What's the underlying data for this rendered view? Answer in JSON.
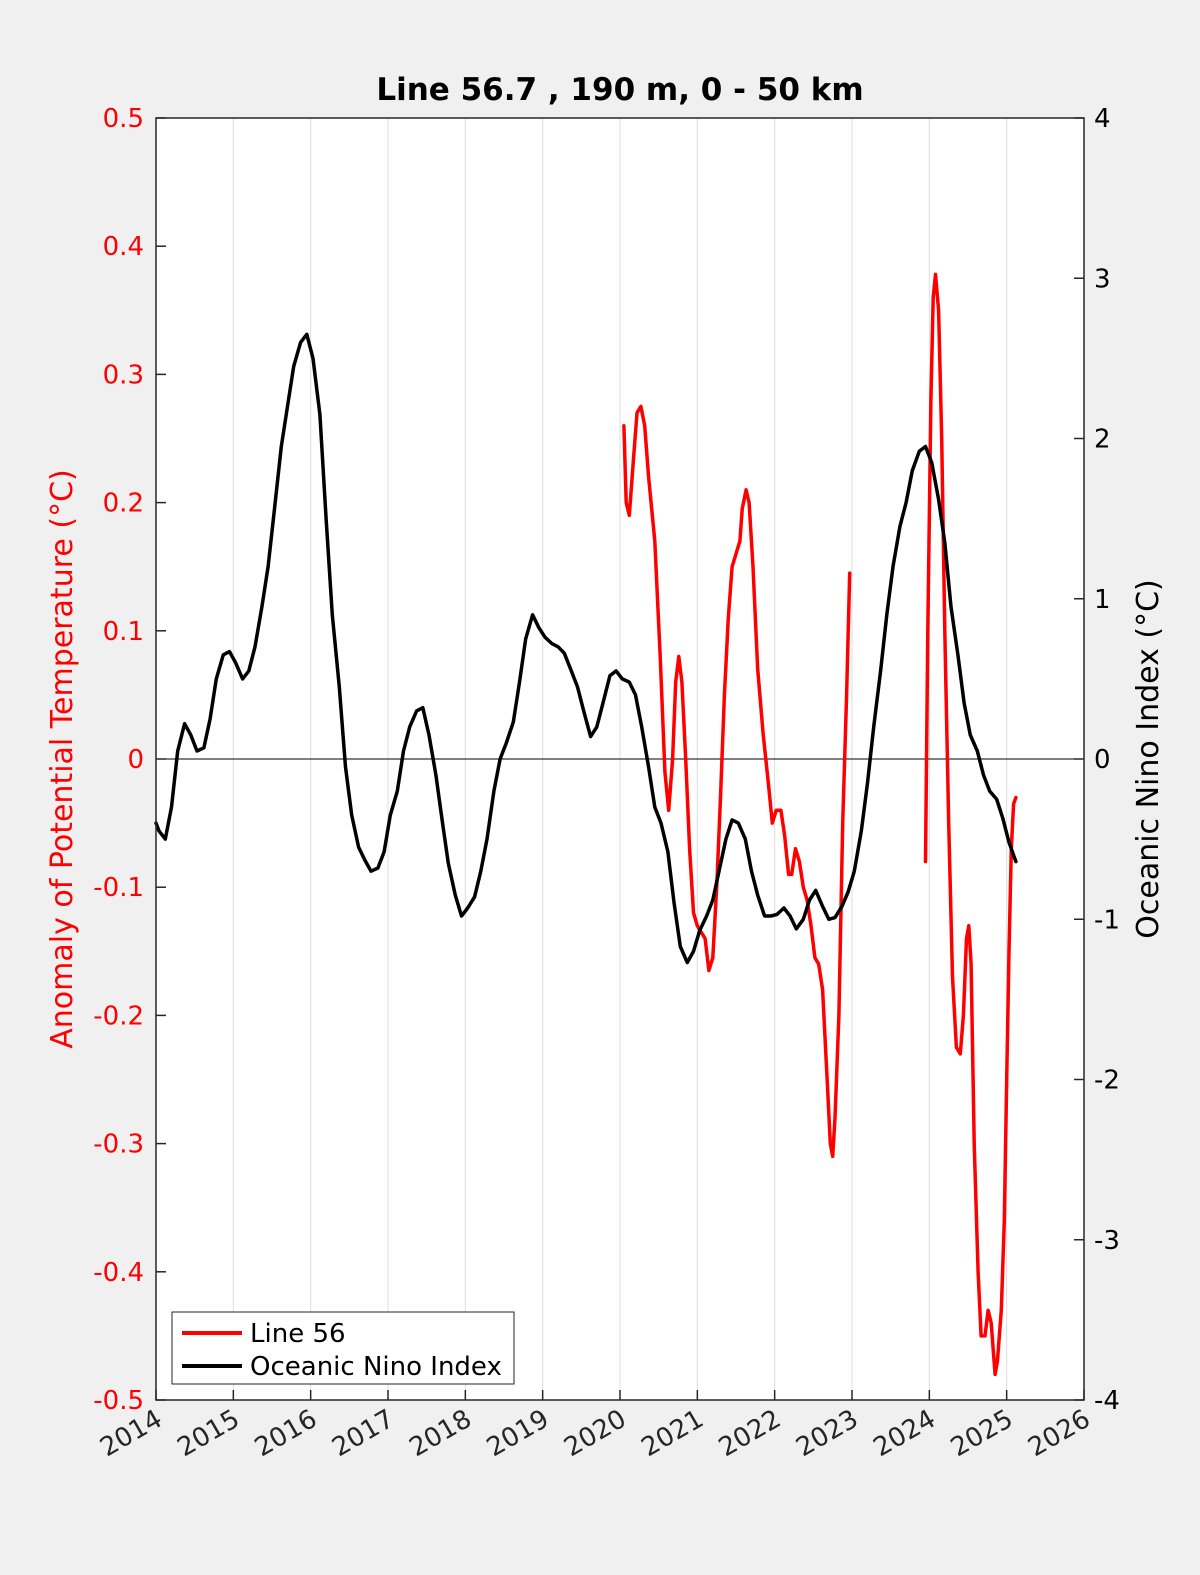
{
  "colors": {
    "left_axis": "#ff0000",
    "right_axis": "#000000",
    "background": "#f0f0f0",
    "plot_area": "#ffffff",
    "grid": "#dddddd"
  },
  "chart_data": {
    "type": "line",
    "title": "Line 56.7 , 190 m, 0 - 50 km",
    "xlim": [
      2014,
      2026
    ],
    "x_ticks": [
      "2014",
      "2015",
      "2016",
      "2017",
      "2018",
      "2019",
      "2020",
      "2021",
      "2022",
      "2023",
      "2024",
      "2025",
      "2026"
    ],
    "ylabel_left": "Anomaly of Potential Temperature (°C)",
    "ylabel_right": "Oceanic Nino Index (°C)",
    "ylim_left": [
      -0.5,
      0.5
    ],
    "ylim_right": [
      -4,
      4
    ],
    "y_ticks_left": [
      "0.5",
      "0.4",
      "0.3",
      "0.2",
      "0.1",
      "0",
      "-0.1",
      "-0.2",
      "-0.3",
      "-0.4",
      "-0.5"
    ],
    "y_ticks_right": [
      "4",
      "3",
      "2",
      "1",
      "0",
      "-1",
      "-2",
      "-3",
      "-4"
    ],
    "vertical_grid": true,
    "zero_line": true,
    "legend_position": "bottom-left",
    "series": [
      {
        "name": "Line 56",
        "axis": "left",
        "color": "#ff0000",
        "segments": [
          [
            [
              2020.05,
              0.26
            ],
            [
              2020.08,
              0.2
            ],
            [
              2020.12,
              0.19
            ],
            [
              2020.17,
              0.23
            ],
            [
              2020.22,
              0.27
            ],
            [
              2020.27,
              0.275
            ],
            [
              2020.32,
              0.26
            ],
            [
              2020.37,
              0.22
            ],
            [
              2020.45,
              0.17
            ],
            [
              2020.52,
              0.08
            ],
            [
              2020.58,
              -0.01
            ],
            [
              2020.63,
              -0.04
            ],
            [
              2020.68,
              0.0
            ],
            [
              2020.72,
              0.06
            ],
            [
              2020.76,
              0.08
            ],
            [
              2020.8,
              0.06
            ],
            [
              2020.85,
              0.0
            ],
            [
              2020.9,
              -0.07
            ],
            [
              2020.95,
              -0.12
            ],
            [
              2021.0,
              -0.13
            ],
            [
              2021.05,
              -0.135
            ],
            [
              2021.1,
              -0.14
            ],
            [
              2021.15,
              -0.165
            ],
            [
              2021.2,
              -0.155
            ],
            [
              2021.25,
              -0.1
            ],
            [
              2021.3,
              -0.03
            ],
            [
              2021.35,
              0.05
            ],
            [
              2021.4,
              0.11
            ],
            [
              2021.45,
              0.15
            ],
            [
              2021.5,
              0.16
            ],
            [
              2021.55,
              0.17
            ],
            [
              2021.58,
              0.195
            ],
            [
              2021.63,
              0.21
            ],
            [
              2021.67,
              0.2
            ],
            [
              2021.72,
              0.15
            ],
            [
              2021.78,
              0.07
            ],
            [
              2021.85,
              0.02
            ],
            [
              2021.92,
              -0.02
            ],
            [
              2021.97,
              -0.05
            ],
            [
              2022.02,
              -0.04
            ],
            [
              2022.08,
              -0.04
            ],
            [
              2022.13,
              -0.06
            ],
            [
              2022.18,
              -0.09
            ],
            [
              2022.22,
              -0.09
            ],
            [
              2022.27,
              -0.07
            ],
            [
              2022.32,
              -0.08
            ],
            [
              2022.37,
              -0.1
            ],
            [
              2022.42,
              -0.11
            ],
            [
              2022.47,
              -0.13
            ],
            [
              2022.52,
              -0.155
            ],
            [
              2022.57,
              -0.16
            ],
            [
              2022.62,
              -0.18
            ],
            [
              2022.67,
              -0.24
            ],
            [
              2022.72,
              -0.3
            ],
            [
              2022.75,
              -0.31
            ],
            [
              2022.78,
              -0.28
            ],
            [
              2022.83,
              -0.2
            ],
            [
              2022.88,
              -0.05
            ],
            [
              2022.93,
              0.05
            ],
            [
              2022.97,
              0.145
            ]
          ],
          [
            [
              2023.95,
              -0.08
            ],
            [
              2023.98,
              0.1
            ],
            [
              2024.02,
              0.28
            ],
            [
              2024.05,
              0.36
            ],
            [
              2024.08,
              0.378
            ],
            [
              2024.12,
              0.35
            ],
            [
              2024.16,
              0.25
            ],
            [
              2024.2,
              0.1
            ],
            [
              2024.25,
              -0.05
            ],
            [
              2024.3,
              -0.17
            ],
            [
              2024.35,
              -0.225
            ],
            [
              2024.4,
              -0.23
            ],
            [
              2024.44,
              -0.2
            ],
            [
              2024.48,
              -0.14
            ],
            [
              2024.51,
              -0.13
            ],
            [
              2024.54,
              -0.16
            ],
            [
              2024.58,
              -0.3
            ],
            [
              2024.63,
              -0.4
            ],
            [
              2024.67,
              -0.45
            ],
            [
              2024.72,
              -0.45
            ],
            [
              2024.76,
              -0.43
            ],
            [
              2024.8,
              -0.44
            ],
            [
              2024.85,
              -0.48
            ],
            [
              2024.88,
              -0.47
            ],
            [
              2024.93,
              -0.43
            ],
            [
              2024.97,
              -0.36
            ],
            [
              2025.0,
              -0.25
            ],
            [
              2025.03,
              -0.15
            ],
            [
              2025.06,
              -0.07
            ],
            [
              2025.09,
              -0.035
            ],
            [
              2025.12,
              -0.03
            ]
          ]
        ]
      },
      {
        "name": "Oceanic Nino Index",
        "axis": "right",
        "color": "#000000",
        "segments": [
          [
            [
              2014.0,
              -0.4
            ],
            [
              2014.04,
              -0.45
            ],
            [
              2014.12,
              -0.5
            ],
            [
              2014.2,
              -0.3
            ],
            [
              2014.28,
              0.05
            ],
            [
              2014.37,
              0.22
            ],
            [
              2014.45,
              0.15
            ],
            [
              2014.53,
              0.05
            ],
            [
              2014.62,
              0.07
            ],
            [
              2014.7,
              0.25
            ],
            [
              2014.78,
              0.5
            ],
            [
              2014.87,
              0.65
            ],
            [
              2014.95,
              0.67
            ],
            [
              2015.03,
              0.6
            ],
            [
              2015.12,
              0.5
            ],
            [
              2015.2,
              0.55
            ],
            [
              2015.28,
              0.7
            ],
            [
              2015.37,
              0.95
            ],
            [
              2015.45,
              1.2
            ],
            [
              2015.53,
              1.55
            ],
            [
              2015.62,
              1.95
            ],
            [
              2015.7,
              2.2
            ],
            [
              2015.78,
              2.45
            ],
            [
              2015.87,
              2.6
            ],
            [
              2015.95,
              2.65
            ],
            [
              2016.03,
              2.5
            ],
            [
              2016.12,
              2.15
            ],
            [
              2016.2,
              1.5
            ],
            [
              2016.28,
              0.9
            ],
            [
              2016.37,
              0.45
            ],
            [
              2016.45,
              -0.05
            ],
            [
              2016.53,
              -0.35
            ],
            [
              2016.62,
              -0.55
            ],
            [
              2016.7,
              -0.63
            ],
            [
              2016.78,
              -0.7
            ],
            [
              2016.87,
              -0.68
            ],
            [
              2016.95,
              -0.58
            ],
            [
              2017.03,
              -0.35
            ],
            [
              2017.12,
              -0.2
            ],
            [
              2017.2,
              0.05
            ],
            [
              2017.28,
              0.2
            ],
            [
              2017.37,
              0.3
            ],
            [
              2017.45,
              0.32
            ],
            [
              2017.53,
              0.15
            ],
            [
              2017.62,
              -0.1
            ],
            [
              2017.7,
              -0.38
            ],
            [
              2017.78,
              -0.65
            ],
            [
              2017.87,
              -0.85
            ],
            [
              2017.95,
              -0.98
            ],
            [
              2018.03,
              -0.93
            ],
            [
              2018.12,
              -0.86
            ],
            [
              2018.2,
              -0.7
            ],
            [
              2018.28,
              -0.5
            ],
            [
              2018.37,
              -0.2
            ],
            [
              2018.45,
              0.0
            ],
            [
              2018.53,
              0.1
            ],
            [
              2018.62,
              0.23
            ],
            [
              2018.7,
              0.48
            ],
            [
              2018.78,
              0.75
            ],
            [
              2018.87,
              0.9
            ],
            [
              2018.95,
              0.82
            ],
            [
              2019.03,
              0.76
            ],
            [
              2019.12,
              0.72
            ],
            [
              2019.2,
              0.7
            ],
            [
              2019.28,
              0.66
            ],
            [
              2019.37,
              0.55
            ],
            [
              2019.45,
              0.45
            ],
            [
              2019.53,
              0.3
            ],
            [
              2019.62,
              0.14
            ],
            [
              2019.7,
              0.2
            ],
            [
              2019.78,
              0.35
            ],
            [
              2019.87,
              0.52
            ],
            [
              2019.95,
              0.55
            ],
            [
              2020.03,
              0.5
            ],
            [
              2020.12,
              0.48
            ],
            [
              2020.2,
              0.4
            ],
            [
              2020.28,
              0.2
            ],
            [
              2020.37,
              -0.05
            ],
            [
              2020.45,
              -0.3
            ],
            [
              2020.53,
              -0.4
            ],
            [
              2020.62,
              -0.58
            ],
            [
              2020.7,
              -0.9
            ],
            [
              2020.78,
              -1.17
            ],
            [
              2020.87,
              -1.27
            ],
            [
              2020.95,
              -1.2
            ],
            [
              2021.03,
              -1.07
            ],
            [
              2021.12,
              -0.98
            ],
            [
              2021.2,
              -0.88
            ],
            [
              2021.28,
              -0.7
            ],
            [
              2021.37,
              -0.5
            ],
            [
              2021.45,
              -0.38
            ],
            [
              2021.53,
              -0.4
            ],
            [
              2021.62,
              -0.5
            ],
            [
              2021.7,
              -0.7
            ],
            [
              2021.78,
              -0.85
            ],
            [
              2021.87,
              -0.98
            ],
            [
              2021.95,
              -0.98
            ],
            [
              2022.03,
              -0.97
            ],
            [
              2022.12,
              -0.93
            ],
            [
              2022.2,
              -0.98
            ],
            [
              2022.28,
              -1.06
            ],
            [
              2022.37,
              -1.0
            ],
            [
              2022.45,
              -0.88
            ],
            [
              2022.53,
              -0.82
            ],
            [
              2022.62,
              -0.92
            ],
            [
              2022.7,
              -1.0
            ],
            [
              2022.78,
              -0.99
            ],
            [
              2022.87,
              -0.92
            ],
            [
              2022.95,
              -0.83
            ],
            [
              2023.03,
              -0.7
            ],
            [
              2023.12,
              -0.45
            ],
            [
              2023.2,
              -0.15
            ],
            [
              2023.28,
              0.2
            ],
            [
              2023.37,
              0.55
            ],
            [
              2023.45,
              0.9
            ],
            [
              2023.53,
              1.2
            ],
            [
              2023.62,
              1.45
            ],
            [
              2023.7,
              1.6
            ],
            [
              2023.78,
              1.8
            ],
            [
              2023.87,
              1.92
            ],
            [
              2023.95,
              1.95
            ],
            [
              2024.03,
              1.85
            ],
            [
              2024.12,
              1.62
            ],
            [
              2024.2,
              1.35
            ],
            [
              2024.28,
              0.95
            ],
            [
              2024.37,
              0.65
            ],
            [
              2024.45,
              0.35
            ],
            [
              2024.53,
              0.15
            ],
            [
              2024.62,
              0.05
            ],
            [
              2024.7,
              -0.1
            ],
            [
              2024.78,
              -0.2
            ],
            [
              2024.87,
              -0.25
            ],
            [
              2024.95,
              -0.37
            ],
            [
              2025.03,
              -0.52
            ],
            [
              2025.12,
              -0.64
            ]
          ]
        ]
      }
    ]
  }
}
